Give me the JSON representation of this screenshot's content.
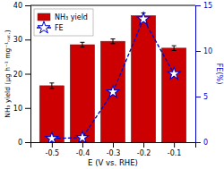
{
  "chart_data": {
    "type": "bar",
    "x": [
      -0.5,
      -0.4,
      -0.3,
      -0.2,
      -0.1
    ],
    "xlim": [
      -0.57,
      -0.03
    ],
    "xticks": [
      -0.5,
      -0.4,
      -0.3,
      -0.2,
      -0.1
    ],
    "xlabel": "E (V vs. RHE)",
    "ylabel": "NH₃ yield (μg h⁻¹ mg⁻¹ₙₐₜ.)",
    "y2label": "FE(%)",
    "ylim": [
      0,
      40
    ],
    "yticks": [
      0,
      10,
      20,
      30,
      40
    ],
    "y2lim": [
      0,
      15
    ],
    "y2ticks": [
      0,
      5,
      10,
      15
    ],
    "legend": "upper left",
    "series": [
      {
        "name": "NH₃ yield",
        "type": "bar",
        "color": "#cc0000",
        "values": [
          16.5,
          28.5,
          29.5,
          37.0,
          27.5
        ],
        "errors": [
          0.8,
          0.7,
          0.7,
          0.8,
          0.7
        ]
      },
      {
        "name": "FE",
        "type": "line",
        "axis": "y2",
        "color": "#0000cc",
        "line_style": "dashed",
        "marker": "star",
        "values": [
          0.4,
          0.5,
          5.5,
          13.5,
          7.5
        ]
      }
    ]
  }
}
